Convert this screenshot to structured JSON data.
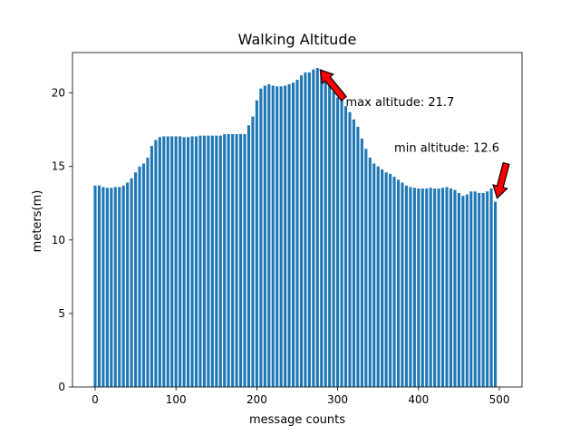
{
  "chart_data": {
    "type": "bar",
    "title": "Walking Altitude",
    "xlabel": "message counts",
    "ylabel": "meters(m)",
    "xlim": [
      -28,
      528
    ],
    "ylim": [
      0,
      22.75
    ],
    "xticks": [
      0,
      100,
      200,
      300,
      400,
      500
    ],
    "yticks": [
      0,
      5,
      10,
      15,
      20
    ],
    "color": "#1f77b4",
    "bar_width": 3.5,
    "x": [
      0,
      5,
      10,
      15,
      20,
      25,
      30,
      35,
      40,
      45,
      50,
      55,
      60,
      65,
      70,
      75,
      80,
      85,
      90,
      95,
      100,
      105,
      110,
      115,
      120,
      125,
      130,
      135,
      140,
      145,
      150,
      155,
      160,
      165,
      170,
      175,
      180,
      185,
      190,
      195,
      200,
      205,
      210,
      215,
      220,
      225,
      230,
      235,
      240,
      245,
      250,
      255,
      260,
      265,
      270,
      275,
      280,
      285,
      290,
      295,
      300,
      305,
      310,
      315,
      320,
      325,
      330,
      335,
      340,
      345,
      350,
      355,
      360,
      365,
      370,
      375,
      380,
      385,
      390,
      395,
      400,
      405,
      410,
      415,
      420,
      425,
      430,
      435,
      440,
      445,
      450,
      455,
      460,
      465,
      470,
      475,
      480,
      485,
      490,
      495
    ],
    "values": [
      13.7,
      13.7,
      13.6,
      13.55,
      13.55,
      13.6,
      13.6,
      13.7,
      13.9,
      14.2,
      14.6,
      15.0,
      15.2,
      15.6,
      16.4,
      16.8,
      17.0,
      17.05,
      17.05,
      17.05,
      17.05,
      17.05,
      17.0,
      17.0,
      17.05,
      17.05,
      17.1,
      17.1,
      17.1,
      17.1,
      17.1,
      17.1,
      17.2,
      17.2,
      17.2,
      17.2,
      17.2,
      17.2,
      17.8,
      18.4,
      19.5,
      20.3,
      20.5,
      20.6,
      20.5,
      20.45,
      20.45,
      20.5,
      20.6,
      20.7,
      20.9,
      21.2,
      21.4,
      21.4,
      21.6,
      21.7,
      21.5,
      21.2,
      20.6,
      20.1,
      19.7,
      19.5,
      19.1,
      18.7,
      18.2,
      17.7,
      16.9,
      16.2,
      15.6,
      15.2,
      15.0,
      14.8,
      14.6,
      14.5,
      14.3,
      14.1,
      13.9,
      13.7,
      13.6,
      13.55,
      13.5,
      13.5,
      13.5,
      13.55,
      13.5,
      13.5,
      13.55,
      13.6,
      13.5,
      13.4,
      13.2,
      13.0,
      13.1,
      13.3,
      13.3,
      13.2,
      13.2,
      13.3,
      13.5,
      12.6
    ],
    "annotations": [
      {
        "text": "max altitude: 21.7",
        "xy": [
          275,
          21.7
        ],
        "xytext": [
          310,
          19.0
        ]
      },
      {
        "text": "min altitude: 12.6",
        "xy": [
          495,
          12.6
        ],
        "xytext": [
          370,
          16.0
        ]
      }
    ]
  }
}
